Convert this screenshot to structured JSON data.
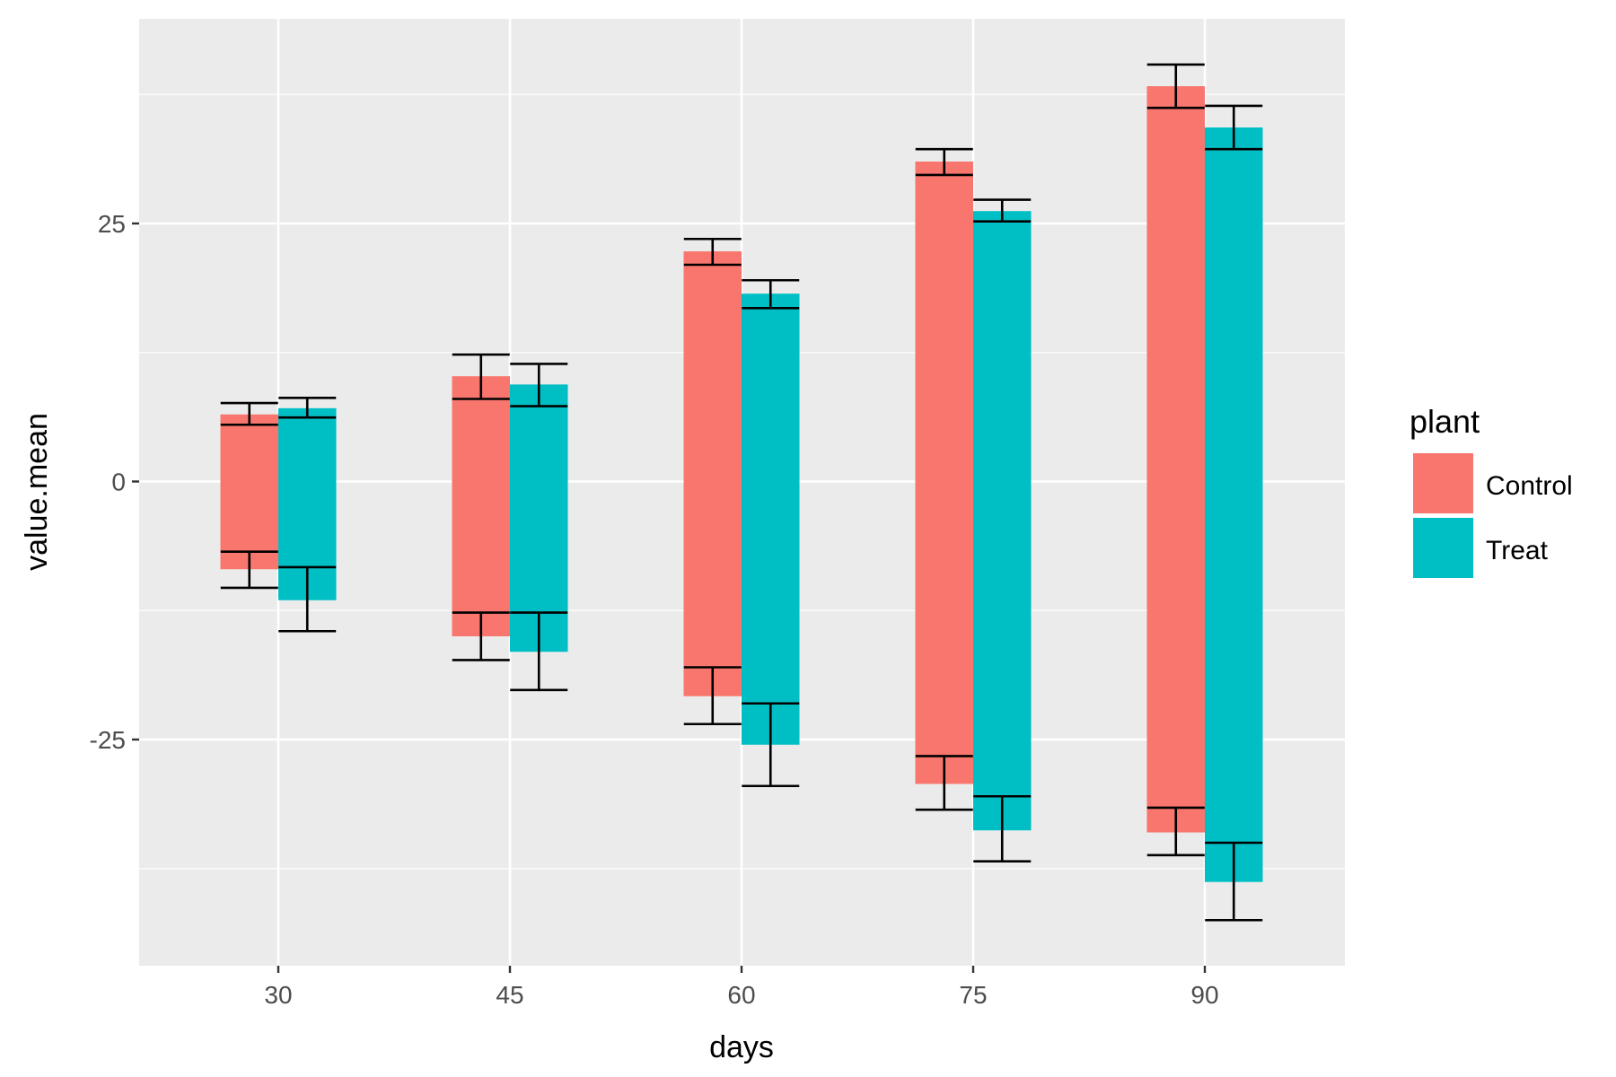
{
  "chart_data": {
    "type": "bar",
    "title": "",
    "xlabel": "days",
    "ylabel": "value.mean",
    "categories": [
      "30",
      "45",
      "60",
      "75",
      "90"
    ],
    "ylim": [
      -47,
      45
    ],
    "yticks": [
      -25,
      0,
      25
    ],
    "ytick_labels": [
      "-25",
      "0",
      "25"
    ],
    "grid": true,
    "legend": {
      "title": "plant",
      "position": "right"
    },
    "series": [
      {
        "name": "Control",
        "color": "#F8766D",
        "upper": [
          6.5,
          10.2,
          22.3,
          31.0,
          38.3
        ],
        "upper_error": [
          [
            5.5,
            7.6
          ],
          [
            8.0,
            12.3
          ],
          [
            21.0,
            23.5
          ],
          [
            29.7,
            32.2
          ],
          [
            36.2,
            40.4
          ]
        ],
        "lower": [
          -8.5,
          -15.0,
          -20.8,
          -29.3,
          -34.0
        ],
        "lower_error": [
          [
            -6.8,
            -10.3
          ],
          [
            -12.7,
            -17.3
          ],
          [
            -18.0,
            -23.5
          ],
          [
            -26.6,
            -31.8
          ],
          [
            -31.6,
            -36.2
          ]
        ]
      },
      {
        "name": "Treat",
        "color": "#00BFC4",
        "upper": [
          7.1,
          9.4,
          18.2,
          26.2,
          34.3
        ],
        "upper_error": [
          [
            6.2,
            8.1
          ],
          [
            7.3,
            11.4
          ],
          [
            16.8,
            19.5
          ],
          [
            25.2,
            27.3
          ],
          [
            32.2,
            36.4
          ]
        ],
        "lower": [
          -11.5,
          -16.5,
          -25.5,
          -33.8,
          -38.8
        ],
        "lower_error": [
          [
            -8.3,
            -14.5
          ],
          [
            -12.7,
            -20.2
          ],
          [
            -21.5,
            -29.5
          ],
          [
            -30.5,
            -36.8
          ],
          [
            -35.0,
            -42.5
          ]
        ]
      }
    ]
  }
}
